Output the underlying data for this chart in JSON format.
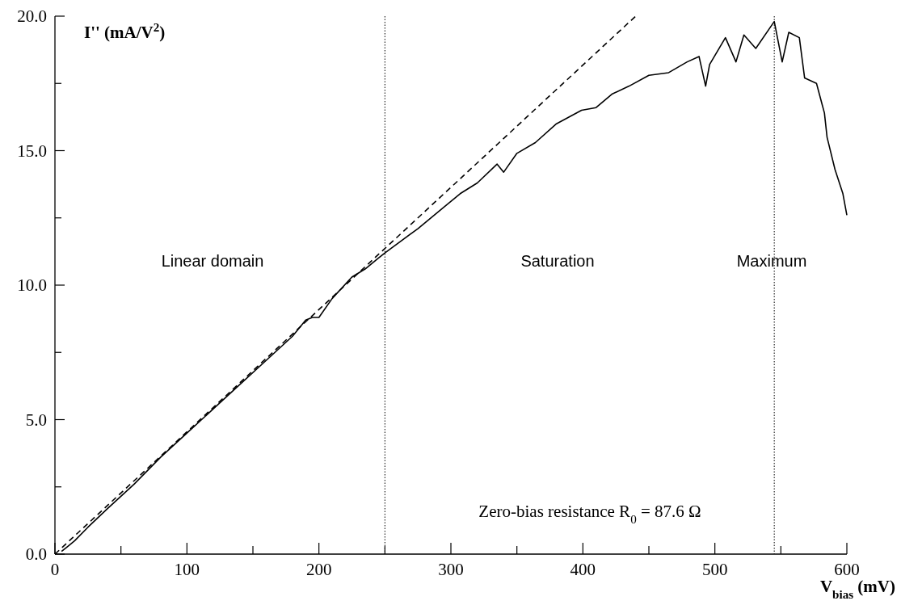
{
  "chart_data": {
    "type": "line",
    "xlabel": "V$_{bias}$ (mV)",
    "ylabel": "I'' (mA/V$^{2}$)",
    "xlim": [
      0,
      600
    ],
    "ylim": [
      0,
      20
    ],
    "xticks": [
      0,
      {
        "value": 50,
        "label": null
      },
      100,
      {
        "value": 150,
        "label": null
      },
      200,
      {
        "value": 250,
        "label": null
      },
      300,
      {
        "value": 350,
        "label": null
      },
      400,
      {
        "value": 450,
        "label": null
      },
      500,
      {
        "value": 550,
        "label": null
      },
      600
    ],
    "yticks": [
      {
        "value": 0,
        "label": "0.0"
      },
      {
        "value": 2.5,
        "label": null
      },
      {
        "value": 5,
        "label": "5.0"
      },
      {
        "value": 7.5,
        "label": null
      },
      {
        "value": 10,
        "label": "10.0"
      },
      {
        "value": 12.5,
        "label": null
      },
      {
        "value": 15,
        "label": "15.0"
      },
      {
        "value": 17.5,
        "label": null
      },
      {
        "value": 20,
        "label": "20.0"
      }
    ],
    "grid": false,
    "series": [
      {
        "color": "#000000",
        "line_style": "solid",
        "x": [
          5,
          10,
          15,
          25,
          40,
          60,
          80,
          100,
          120,
          140,
          160,
          180,
          190,
          195,
          200,
          210,
          225,
          235,
          245,
          250,
          275,
          307,
          320,
          335,
          340,
          350,
          364,
          380,
          399,
          410,
          422,
          435,
          450,
          465,
          479,
          488,
          493,
          496,
          508,
          516,
          522,
          531,
          545,
          551,
          556,
          564,
          568,
          577,
          583,
          585,
          591,
          597,
          600
        ],
        "values": [
          0.1,
          0.3,
          0.5,
          1.0,
          1.7,
          2.6,
          3.6,
          4.5,
          5.4,
          6.3,
          7.2,
          8.1,
          8.7,
          8.8,
          8.8,
          9.5,
          10.3,
          10.6,
          11.0,
          11.2,
          12.1,
          13.4,
          13.8,
          14.5,
          14.2,
          14.9,
          15.3,
          16.0,
          16.5,
          16.6,
          17.1,
          17.4,
          17.8,
          17.9,
          18.3,
          18.5,
          17.4,
          18.2,
          19.2,
          18.3,
          19.3,
          18.8,
          19.8,
          18.3,
          19.4,
          19.2,
          17.7,
          17.5,
          16.4,
          15.5,
          14.3,
          13.4,
          12.6
        ]
      },
      {
        "color": "#000000",
        "line_style": "dashed",
        "x": [
          0,
          440
        ],
        "values": [
          0,
          20
        ]
      }
    ],
    "ref_lines": [
      {
        "axis": "x",
        "value": 250,
        "line_style": "dotted",
        "color": "#000000"
      },
      {
        "axis": "x",
        "value": 545,
        "line_style": "dotted",
        "color": "#000000"
      }
    ],
    "annotations": [
      "Linear domain",
      "Saturation",
      "Maximum",
      "Zero-bias resistance R$_{0}$ = 87.6  Ω"
    ]
  }
}
